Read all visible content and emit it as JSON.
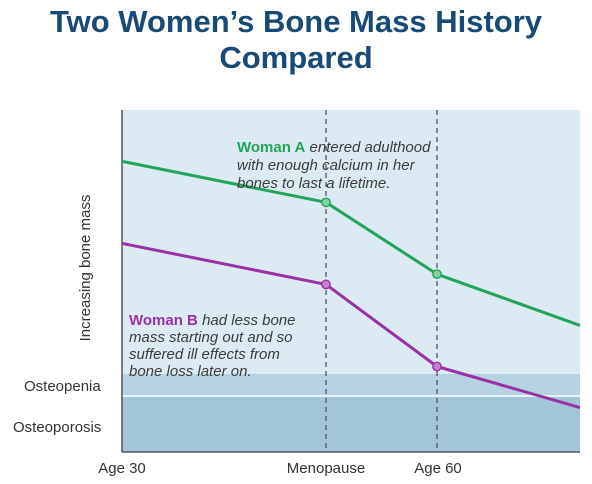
{
  "title_line1": "Two Women’s Bone Mass History",
  "title_line2": "Compared",
  "chart_data": {
    "type": "line",
    "title": "Two Women’s Bone Mass History Compared",
    "ylabel": "Increasing bone mass",
    "xlabel": "",
    "x_ticks": [
      "Age 30",
      "Menopause",
      "Age 60"
    ],
    "y_zones": [
      {
        "label": "Osteopenia",
        "color": "#b7d2e2"
      },
      {
        "label": "Osteoporosis",
        "color": "#a3c5da"
      }
    ],
    "plot_background": "#dcebf3",
    "series": [
      {
        "name": "Woman A",
        "color": "#22a45a",
        "marker_color": "#7fd39b",
        "points": [
          [
            "Age 30",
            85
          ],
          [
            "Menopause",
            73
          ],
          [
            "Age 60",
            52
          ],
          [
            "end",
            37
          ]
        ],
        "markers": [
          "Menopause",
          "Age 60"
        ]
      },
      {
        "name": "Woman B",
        "color": "#9a30a6",
        "marker_color": "#c97fd2",
        "points": [
          [
            "Age 30",
            61
          ],
          [
            "Menopause",
            49
          ],
          [
            "Age 60",
            25
          ],
          [
            "end",
            13
          ]
        ],
        "markers": [
          "Menopause",
          "Age 60"
        ]
      }
    ],
    "annotations": [
      {
        "series": "Woman A",
        "lead": "Woman A",
        "lines": [
          " entered adulthood",
          "with enough calcium in her",
          "bones to last a lifetime."
        ]
      },
      {
        "series": "Woman B",
        "lead": "Woman B",
        "lines": [
          " had less bone",
          "mass starting out and so",
          "suffered ill effects from",
          "bone loss later on."
        ]
      }
    ],
    "ylim": [
      0,
      100
    ],
    "grid": false
  }
}
